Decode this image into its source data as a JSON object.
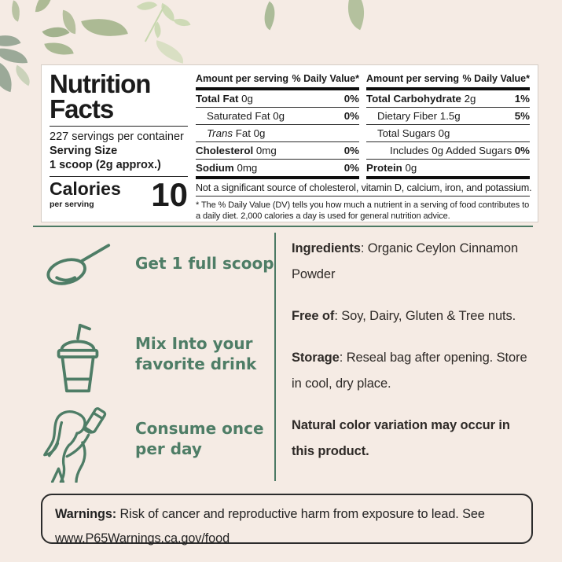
{
  "theme": {
    "page_bg": "#f5ebe4",
    "accent_green": "#4e7d66",
    "divider_green": "#4c7a64",
    "leaf_sage": "#a0b287",
    "leaf_light": "#c7d7ae",
    "leaf_gray": "#8b9d8b",
    "panel_bg": "#ffffff"
  },
  "nutrition_panel": {
    "title_line1": "Nutrition",
    "title_line2": "Facts",
    "servings_per_container": "227 servings per container",
    "serving_size_label": "Serving Size",
    "serving_size_value": "1 scoop (2g approx.)",
    "calories_label": "Calories",
    "calories_sublabel": "per serving",
    "calories_value": "10",
    "columns": [
      {
        "header_left": "Amount per serving",
        "header_right": "% Daily Value*",
        "rows": [
          {
            "name": "Total Fat",
            "amount": "0g",
            "dv": "0%",
            "style": "bold",
            "indent": 0
          },
          {
            "name": "Saturated Fat",
            "amount": "0g",
            "dv": "0%",
            "style": "plain",
            "indent": 1
          },
          {
            "name": "Trans Fat",
            "amount": "0g",
            "dv": "",
            "style": "italic-first",
            "indent": 1
          },
          {
            "name": "Cholesterol",
            "amount": "0mg",
            "dv": "0%",
            "style": "bold",
            "indent": 0
          },
          {
            "name": "Sodium",
            "amount": "0mg",
            "dv": "0%",
            "style": "bold",
            "indent": 0
          }
        ]
      },
      {
        "header_left": "Amount per serving",
        "header_right": "% Daily Value*",
        "rows": [
          {
            "name": "Total Carbohydrate",
            "amount": "2g",
            "dv": "1%",
            "style": "bold",
            "indent": 0
          },
          {
            "name": "Dietary Fiber",
            "amount": "1.5g",
            "dv": "5%",
            "style": "plain",
            "indent": 1
          },
          {
            "name": "Total Sugars",
            "amount": "0g",
            "dv": "",
            "style": "plain",
            "indent": 1
          },
          {
            "name": "Includes 0g Added Sugars",
            "amount": "",
            "dv": "0%",
            "style": "plain",
            "indent": 2
          },
          {
            "name": "Protein",
            "amount": "0g",
            "dv": "",
            "style": "bold",
            "indent": 0
          }
        ]
      }
    ],
    "not_significant_note": "Not a significant source of cholesterol, vitamin D, calcium, iron, and potassium.",
    "daily_value_footnote": "* The % Daily Value (DV) tells you how much a nutrient in a serving of food contributes to a daily diet. 2,000 calories a day is used for general nutrition advice."
  },
  "directions": {
    "items": [
      {
        "icon": "scoop-icon",
        "label": "Get 1 full scoop"
      },
      {
        "icon": "drink-cup-icon",
        "label": "Mix Into your\nfavorite drink"
      },
      {
        "icon": "person-drinking-icon",
        "label": "Consume once\nper day"
      }
    ]
  },
  "info_sections": [
    {
      "name": "ingredients-section",
      "label": "Ingredients",
      "sep": ": ",
      "body": "Organic Ceylon Cinnamon Powder",
      "emphasis": false
    },
    {
      "name": "free-of-section",
      "label": "Free of",
      "sep": ": ",
      "body": "Soy, Dairy, Gluten & Tree nuts.",
      "emphasis": false
    },
    {
      "name": "storage-section",
      "label": "Storage",
      "sep": ": ",
      "body": "Reseal bag after opening. Store in cool, dry place.",
      "emphasis": false
    },
    {
      "name": "color-variation-note",
      "label": "",
      "sep": "",
      "body": "Natural color variation may occur in this product.",
      "emphasis": true
    }
  ],
  "warnings": {
    "label": "Warnings:",
    "body": " Risk of cancer and reproductive harm from exposure to lead. See www.P65Warnings.ca.gov/food"
  }
}
